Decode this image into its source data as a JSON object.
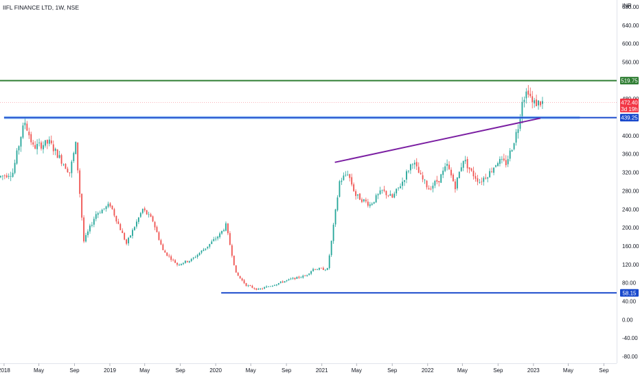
{
  "header": {
    "title": "IIFL FINANCE LTD, 1W, NSE"
  },
  "chart_data": {
    "type": "candlestick",
    "symbol": "IIFL FINANCE LTD",
    "interval": "1W",
    "exchange": "NSE",
    "currency": "INR",
    "x_range": [
      "2017-12-18",
      "2023-10-15"
    ],
    "ylim": [
      -95,
      695
    ],
    "y_ticks": [
      680,
      640,
      600,
      560,
      520,
      480,
      440,
      400,
      360,
      320,
      280,
      240,
      200,
      160,
      120,
      80,
      40,
      0,
      -40,
      -80
    ],
    "y_tick_labels": [
      "680.00",
      "640.00",
      "600.00",
      "560.00",
      "520.00",
      "480.00",
      "440.00",
      "400.00",
      "360.00",
      "320.00",
      "280.00",
      "240.00",
      "200.00",
      "160.00",
      "120.00",
      "80.00",
      "40.00",
      "0.00",
      "-40.00",
      "-80.00"
    ],
    "x_ticks": [
      {
        "date": "2018-01-01",
        "label": "2018"
      },
      {
        "date": "2018-05-01",
        "label": "May"
      },
      {
        "date": "2018-09-01",
        "label": "Sep"
      },
      {
        "date": "2019-01-01",
        "label": "2019"
      },
      {
        "date": "2019-05-01",
        "label": "May"
      },
      {
        "date": "2019-09-01",
        "label": "Sep"
      },
      {
        "date": "2020-01-01",
        "label": "2020"
      },
      {
        "date": "2020-05-01",
        "label": "May"
      },
      {
        "date": "2020-09-01",
        "label": "Sep"
      },
      {
        "date": "2021-01-01",
        "label": "2021"
      },
      {
        "date": "2021-05-01",
        "label": "May"
      },
      {
        "date": "2021-09-01",
        "label": "Sep"
      },
      {
        "date": "2022-01-01",
        "label": "2022"
      },
      {
        "date": "2022-05-01",
        "label": "May"
      },
      {
        "date": "2022-09-01",
        "label": "Sep"
      },
      {
        "date": "2023-01-01",
        "label": "2023"
      },
      {
        "date": "2023-05-01",
        "label": "May"
      },
      {
        "date": "2023-09-01",
        "label": "Sep"
      }
    ],
    "current_price": {
      "value": 472.4,
      "label": "472.40",
      "countdown": "3d 19h",
      "color": "#f23645"
    },
    "horizontal_lines": [
      {
        "value": 519.75,
        "label": "519.75",
        "color": "#2e7d32",
        "start": "2017-12-18",
        "end": "2023-10-15"
      },
      {
        "value": 439.25,
        "label": "439.25",
        "color": "#1848cc",
        "start": "2018-01-01",
        "end": "2023-10-15",
        "band_end": "2023-06-10"
      },
      {
        "value": 58.15,
        "label": "58.15",
        "color": "#1848cc",
        "start": "2020-01-20",
        "end": "2023-10-15"
      }
    ],
    "trend_lines": [
      {
        "name": "",
        "color": "#7b1fa2",
        "from": {
          "date": "2021-02-15",
          "value": 342
        },
        "to": {
          "date": "2023-01-25",
          "value": 438
        }
      }
    ],
    "up_color": "#26a69a",
    "down_color": "#ef5350",
    "anchors": [
      [
        "2017-12-18",
        310
      ],
      [
        "2018-02-05",
        320
      ],
      [
        "2018-03-05",
        400
      ],
      [
        "2018-03-19",
        430
      ],
      [
        "2018-04-16",
        375
      ],
      [
        "2018-06-11",
        385
      ],
      [
        "2018-08-20",
        320
      ],
      [
        "2018-09-10",
        380
      ],
      [
        "2018-10-08",
        170
      ],
      [
        "2018-11-19",
        230
      ],
      [
        "2019-01-07",
        250
      ],
      [
        "2019-03-04",
        165
      ],
      [
        "2019-04-29",
        240
      ],
      [
        "2019-06-03",
        215
      ],
      [
        "2019-07-08",
        150
      ],
      [
        "2019-08-26",
        120
      ],
      [
        "2019-10-14",
        130
      ],
      [
        "2019-12-09",
        160
      ],
      [
        "2020-01-20",
        185
      ],
      [
        "2020-02-10",
        205
      ],
      [
        "2020-03-16",
        100
      ],
      [
        "2020-04-20",
        75
      ],
      [
        "2020-06-01",
        65
      ],
      [
        "2020-09-21",
        88
      ],
      [
        "2020-11-09",
        95
      ],
      [
        "2020-12-07",
        110
      ],
      [
        "2021-01-25",
        110
      ],
      [
        "2021-02-08",
        170
      ],
      [
        "2021-03-08",
        300
      ],
      [
        "2021-04-05",
        320
      ],
      [
        "2021-05-03",
        270
      ],
      [
        "2021-06-21",
        250
      ],
      [
        "2021-08-02",
        280
      ],
      [
        "2021-09-06",
        265
      ],
      [
        "2021-10-11",
        300
      ],
      [
        "2021-11-15",
        345
      ],
      [
        "2021-12-13",
        310
      ],
      [
        "2022-01-10",
        285
      ],
      [
        "2022-02-14",
        305
      ],
      [
        "2022-03-14",
        335
      ],
      [
        "2022-04-11",
        290
      ],
      [
        "2022-05-09",
        350
      ],
      [
        "2022-06-06",
        320
      ],
      [
        "2022-07-04",
        300
      ],
      [
        "2022-08-08",
        320
      ],
      [
        "2022-09-05",
        345
      ],
      [
        "2022-10-03",
        340
      ],
      [
        "2022-10-24",
        375
      ],
      [
        "2022-11-14",
        420
      ],
      [
        "2022-11-28",
        480
      ],
      [
        "2022-12-19",
        500
      ],
      [
        "2023-01-02",
        470
      ],
      [
        "2023-01-30",
        472
      ]
    ]
  }
}
